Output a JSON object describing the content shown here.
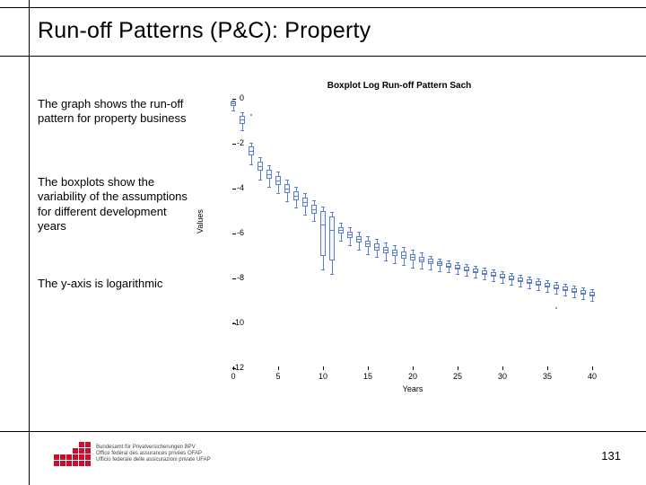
{
  "title": "Run-off Patterns (P&C): Property",
  "paragraphs": {
    "p1": "The graph shows the run-off pattern for property business",
    "p2": "The boxplots show the variability of the assumptions for different development years",
    "p3": "The y-axis is logarithmic"
  },
  "chart": {
    "type": "boxplot",
    "title": "Boxplot Log Run-off Pattern Sach",
    "xlabel": "Years",
    "ylabel": "Values",
    "xlim": [
      0,
      40
    ],
    "ylim": [
      -12,
      0
    ],
    "xticks": [
      0,
      5,
      10,
      15,
      20,
      25,
      30,
      35,
      40
    ],
    "yticks": [
      0,
      -2,
      -4,
      -6,
      -8,
      -10,
      -12
    ],
    "box_border_color": "#5b7fcf",
    "box_fill_color": "rgba(200,210,240,0.2)",
    "background_color": "#ffffff",
    "box_width_years": 0.6,
    "data": [
      {
        "x": 0,
        "q1": -0.3,
        "med": -0.2,
        "q3": -0.12,
        "lo": -0.5,
        "hi": -0.08,
        "out": []
      },
      {
        "x": 1,
        "q1": -1.1,
        "med": -0.9,
        "q3": -0.75,
        "lo": -1.4,
        "hi": -0.6,
        "out": []
      },
      {
        "x": 2,
        "q1": -2.5,
        "med": -2.3,
        "q3": -2.1,
        "lo": -2.9,
        "hi": -1.95,
        "out": [
          -0.7
        ]
      },
      {
        "x": 3,
        "q1": -3.2,
        "med": -3.0,
        "q3": -2.8,
        "lo": -3.6,
        "hi": -2.6,
        "out": []
      },
      {
        "x": 4,
        "q1": -3.55,
        "med": -3.35,
        "q3": -3.15,
        "lo": -3.9,
        "hi": -2.95,
        "out": []
      },
      {
        "x": 5,
        "q1": -3.85,
        "med": -3.65,
        "q3": -3.45,
        "lo": -4.2,
        "hi": -3.25,
        "out": []
      },
      {
        "x": 6,
        "q1": -4.2,
        "med": -4.0,
        "q3": -3.8,
        "lo": -4.55,
        "hi": -3.6,
        "out": []
      },
      {
        "x": 7,
        "q1": -4.5,
        "med": -4.3,
        "q3": -4.1,
        "lo": -4.85,
        "hi": -3.9,
        "out": []
      },
      {
        "x": 8,
        "q1": -4.8,
        "med": -4.6,
        "q3": -4.4,
        "lo": -5.15,
        "hi": -4.2,
        "out": []
      },
      {
        "x": 9,
        "q1": -5.1,
        "med": -4.9,
        "q3": -4.7,
        "lo": -5.45,
        "hi": -4.5,
        "out": []
      },
      {
        "x": 10,
        "q1": -7.0,
        "med": -5.6,
        "q3": -5.0,
        "lo": -7.6,
        "hi": -4.8,
        "out": []
      },
      {
        "x": 11,
        "q1": -7.2,
        "med": -5.85,
        "q3": -5.25,
        "lo": -7.8,
        "hi": -5.05,
        "out": []
      },
      {
        "x": 12,
        "q1": -6.0,
        "med": -5.85,
        "q3": -5.7,
        "lo": -6.3,
        "hi": -5.5,
        "out": []
      },
      {
        "x": 13,
        "q1": -6.2,
        "med": -6.05,
        "q3": -5.9,
        "lo": -6.5,
        "hi": -5.7,
        "out": []
      },
      {
        "x": 14,
        "q1": -6.4,
        "med": -6.25,
        "q3": -6.1,
        "lo": -6.7,
        "hi": -5.9,
        "out": []
      },
      {
        "x": 15,
        "q1": -6.6,
        "med": -6.45,
        "q3": -6.3,
        "lo": -6.9,
        "hi": -6.1,
        "out": []
      },
      {
        "x": 16,
        "q1": -6.75,
        "med": -6.6,
        "q3": -6.45,
        "lo": -7.05,
        "hi": -6.25,
        "out": []
      },
      {
        "x": 17,
        "q1": -6.88,
        "med": -6.73,
        "q3": -6.58,
        "lo": -7.18,
        "hi": -6.38,
        "out": []
      },
      {
        "x": 18,
        "q1": -7.0,
        "med": -6.85,
        "q3": -6.7,
        "lo": -7.3,
        "hi": -6.5,
        "out": []
      },
      {
        "x": 19,
        "q1": -7.1,
        "med": -6.95,
        "q3": -6.8,
        "lo": -7.4,
        "hi": -6.6,
        "out": []
      },
      {
        "x": 20,
        "q1": -7.2,
        "med": -7.05,
        "q3": -6.9,
        "lo": -7.5,
        "hi": -6.7,
        "out": []
      },
      {
        "x": 21,
        "q1": -7.28,
        "med": -7.15,
        "q3": -7.02,
        "lo": -7.55,
        "hi": -6.85,
        "out": []
      },
      {
        "x": 22,
        "q1": -7.36,
        "med": -7.24,
        "q3": -7.12,
        "lo": -7.6,
        "hi": -6.98,
        "out": []
      },
      {
        "x": 23,
        "q1": -7.44,
        "med": -7.33,
        "q3": -7.22,
        "lo": -7.66,
        "hi": -7.1,
        "out": []
      },
      {
        "x": 24,
        "q1": -7.52,
        "med": -7.42,
        "q3": -7.32,
        "lo": -7.72,
        "hi": -7.2,
        "out": []
      },
      {
        "x": 25,
        "q1": -7.6,
        "med": -7.5,
        "q3": -7.4,
        "lo": -7.8,
        "hi": -7.28,
        "out": []
      },
      {
        "x": 26,
        "q1": -7.68,
        "med": -7.58,
        "q3": -7.48,
        "lo": -7.88,
        "hi": -7.36,
        "out": []
      },
      {
        "x": 27,
        "q1": -7.76,
        "med": -7.66,
        "q3": -7.56,
        "lo": -7.96,
        "hi": -7.44,
        "out": []
      },
      {
        "x": 28,
        "q1": -7.84,
        "med": -7.74,
        "q3": -7.64,
        "lo": -8.04,
        "hi": -7.52,
        "out": []
      },
      {
        "x": 29,
        "q1": -7.92,
        "med": -7.82,
        "q3": -7.72,
        "lo": -8.12,
        "hi": -7.6,
        "out": []
      },
      {
        "x": 30,
        "q1": -8.0,
        "med": -7.9,
        "q3": -7.8,
        "lo": -8.2,
        "hi": -7.68,
        "out": []
      },
      {
        "x": 31,
        "q1": -8.08,
        "med": -7.98,
        "q3": -7.88,
        "lo": -8.28,
        "hi": -7.76,
        "out": []
      },
      {
        "x": 32,
        "q1": -8.16,
        "med": -8.06,
        "q3": -7.96,
        "lo": -8.36,
        "hi": -7.84,
        "out": []
      },
      {
        "x": 33,
        "q1": -8.24,
        "med": -8.14,
        "q3": -8.04,
        "lo": -8.44,
        "hi": -7.92,
        "out": []
      },
      {
        "x": 34,
        "q1": -8.32,
        "med": -8.22,
        "q3": -8.12,
        "lo": -8.52,
        "hi": -8.0,
        "out": []
      },
      {
        "x": 35,
        "q1": -8.4,
        "med": -8.3,
        "q3": -8.2,
        "lo": -8.6,
        "hi": -8.08,
        "out": []
      },
      {
        "x": 36,
        "q1": -8.48,
        "med": -8.38,
        "q3": -8.28,
        "lo": -8.68,
        "hi": -8.16,
        "out": [
          -9.3
        ]
      },
      {
        "x": 37,
        "q1": -8.56,
        "med": -8.46,
        "q3": -8.36,
        "lo": -8.76,
        "hi": -8.24,
        "out": []
      },
      {
        "x": 38,
        "q1": -8.64,
        "med": -8.54,
        "q3": -8.44,
        "lo": -8.84,
        "hi": -8.32,
        "out": []
      },
      {
        "x": 39,
        "q1": -8.72,
        "med": -8.62,
        "q3": -8.52,
        "lo": -8.92,
        "hi": -8.4,
        "out": []
      },
      {
        "x": 40,
        "q1": -8.8,
        "med": -8.7,
        "q3": -8.6,
        "lo": -9.0,
        "hi": -8.48,
        "out": []
      }
    ]
  },
  "logo": {
    "line1": "Bundesamt für Privatversicherungen BPV",
    "line2": "Office fédéral des assurances privées OFAP",
    "line3": "Ufficio federale delle assicurazioni private UFAP",
    "dot_color": "#c8102e",
    "pattern": [
      [
        0,
        0,
        0,
        0,
        1,
        1
      ],
      [
        0,
        0,
        0,
        1,
        1,
        1
      ],
      [
        1,
        1,
        1,
        1,
        1,
        1
      ],
      [
        1,
        1,
        1,
        1,
        1,
        1
      ]
    ]
  },
  "page_number": "131"
}
